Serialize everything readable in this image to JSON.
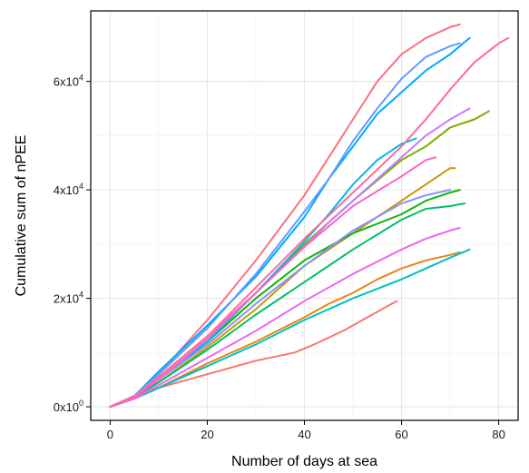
{
  "chart_data": {
    "type": "line",
    "title": "",
    "xlabel": "Number of days at sea",
    "ylabel": "Cumulative sum of nPEE",
    "xlim": [
      -4,
      84
    ],
    "ylim": [
      -2500,
      73000
    ],
    "grid": true,
    "legend": "none",
    "x_ticks": [
      {
        "value": 0,
        "label": "0"
      },
      {
        "value": 20,
        "label": "20"
      },
      {
        "value": 40,
        "label": "40"
      },
      {
        "value": 60,
        "label": "60"
      },
      {
        "value": 80,
        "label": "80"
      }
    ],
    "y_ticks": [
      {
        "value": 0,
        "base": "0x10",
        "exp": "0"
      },
      {
        "value": 20000,
        "base": "2x10",
        "exp": "4"
      },
      {
        "value": 40000,
        "base": "4x10",
        "exp": "4"
      },
      {
        "value": 60000,
        "base": "6x10",
        "exp": "4"
      }
    ],
    "series": [
      {
        "color": "#F8766D",
        "x": [
          0,
          5,
          10,
          20,
          30,
          38,
          42,
          48,
          55,
          59
        ],
        "y": [
          0,
          1500,
          3500,
          6000,
          8500,
          10000,
          11500,
          14000,
          17500,
          19500
        ]
      },
      {
        "color": "#FC717F",
        "x": [
          0,
          5,
          10,
          20,
          30,
          40,
          45,
          50,
          55,
          60,
          65,
          70,
          72
        ],
        "y": [
          0,
          2000,
          6000,
          16000,
          27000,
          39000,
          46000,
          53000,
          60000,
          65000,
          68000,
          70000,
          70500
        ]
      },
      {
        "color": "#E68613",
        "x": [
          0,
          5,
          10,
          20,
          30,
          40,
          45,
          50,
          55,
          60,
          65,
          70,
          72
        ],
        "y": [
          0,
          1500,
          3500,
          8000,
          12000,
          16500,
          19000,
          21000,
          23500,
          25500,
          27000,
          28000,
          28500
        ]
      },
      {
        "color": "#CD9600",
        "x": [
          0,
          5,
          10,
          20,
          30,
          40,
          50,
          60,
          65,
          70,
          71
        ],
        "y": [
          0,
          1800,
          4500,
          11000,
          18000,
          26000,
          32000,
          38000,
          41000,
          44000,
          44000
        ]
      },
      {
        "color": "#7CAE00",
        "x": [
          0,
          5,
          10,
          20,
          30,
          40,
          50,
          60,
          65,
          70,
          75,
          78
        ],
        "y": [
          0,
          2000,
          5500,
          13000,
          21000,
          30000,
          38000,
          45500,
          48000,
          51500,
          53000,
          54500
        ]
      },
      {
        "color": "#0CB702",
        "x": [
          0,
          5,
          10,
          20,
          30,
          40,
          50,
          60,
          65,
          70,
          72
        ],
        "y": [
          0,
          1800,
          5000,
          12000,
          20000,
          27000,
          32000,
          35500,
          38000,
          39500,
          40000
        ]
      },
      {
        "color": "#00BE67",
        "x": [
          0,
          5,
          10,
          20,
          30,
          40,
          50,
          60,
          65,
          70,
          73
        ],
        "y": [
          0,
          1700,
          4500,
          10500,
          17000,
          23000,
          29000,
          34500,
          36500,
          37000,
          37500
        ]
      },
      {
        "color": "#00BFC4",
        "x": [
          0,
          5,
          10,
          20,
          30,
          40,
          50,
          60,
          65,
          70,
          74
        ],
        "y": [
          0,
          1500,
          3500,
          7500,
          11500,
          16000,
          20000,
          23500,
          25500,
          27500,
          29000
        ]
      },
      {
        "color": "#00A9FF",
        "x": [
          0,
          5,
          10,
          20,
          30,
          40,
          45,
          50,
          55,
          60,
          65,
          70,
          74
        ],
        "y": [
          0,
          2000,
          6500,
          15000,
          24000,
          35000,
          42000,
          48000,
          54000,
          58000,
          62000,
          65000,
          68000
        ]
      },
      {
        "color": "#00B8E7",
        "x": [
          0,
          5,
          10,
          20,
          30,
          40,
          45,
          50,
          55,
          60,
          63
        ],
        "y": [
          0,
          1800,
          5000,
          12000,
          21000,
          30500,
          35500,
          41000,
          45500,
          48500,
          49500
        ]
      },
      {
        "color": "#619CFF",
        "x": [
          0,
          5,
          10,
          20,
          30,
          40,
          45,
          50,
          55,
          60,
          65,
          70,
          72
        ],
        "y": [
          0,
          2000,
          6000,
          14500,
          24500,
          36000,
          42000,
          49000,
          55000,
          60500,
          64500,
          66500,
          67000
        ]
      },
      {
        "color": "#8494FF",
        "x": [
          0,
          5,
          10,
          20,
          30,
          40,
          50,
          60,
          65,
          70
        ],
        "y": [
          0,
          1800,
          5000,
          11500,
          19000,
          26000,
          32500,
          37500,
          39000,
          40000
        ]
      },
      {
        "color": "#C77CFF",
        "x": [
          0,
          5,
          10,
          20,
          30,
          40,
          45,
          50,
          55,
          60,
          65,
          70,
          74
        ],
        "y": [
          0,
          2000,
          5500,
          13000,
          21000,
          29500,
          34000,
          38000,
          42000,
          46000,
          50000,
          53000,
          55000
        ]
      },
      {
        "color": "#ED68ED",
        "x": [
          0,
          5,
          10,
          20,
          30,
          40,
          50,
          60,
          65,
          70,
          72
        ],
        "y": [
          0,
          1500,
          4000,
          9000,
          14000,
          19500,
          24500,
          29000,
          31000,
          32500,
          33000
        ]
      },
      {
        "color": "#FF61C9",
        "x": [
          0,
          5,
          10,
          20,
          30,
          40,
          50,
          60,
          65,
          67
        ],
        "y": [
          0,
          1800,
          5000,
          12500,
          21000,
          29500,
          37000,
          42500,
          45500,
          46000
        ]
      },
      {
        "color": "#FF6A98",
        "x": [
          0,
          5,
          10,
          20,
          30,
          40,
          50,
          60,
          65,
          70,
          75,
          80,
          82
        ],
        "y": [
          0,
          2000,
          5500,
          13000,
          22000,
          31000,
          39500,
          48000,
          53000,
          58500,
          63500,
          67000,
          68000
        ]
      }
    ]
  }
}
